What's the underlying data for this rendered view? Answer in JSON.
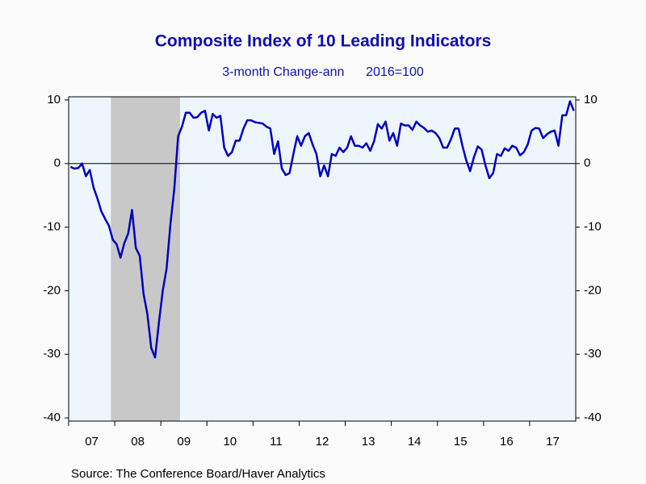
{
  "chart_data": {
    "type": "line",
    "title": "Composite Index of 10 Leading Indicators",
    "subtitle": "3-month Change-ann      2016=100",
    "source": "Source:  The Conference Board/Haver Analytics",
    "categories": [
      null,
      null,
      null,
      null,
      null,
      null,
      "07",
      null,
      null,
      null,
      null,
      null,
      null,
      null,
      null,
      null,
      null,
      null,
      "08",
      null,
      null,
      null,
      null,
      null,
      null,
      null,
      null,
      null,
      null,
      null,
      "09",
      null,
      null,
      null,
      null,
      null,
      null,
      null,
      null,
      null,
      null,
      null,
      "10",
      null,
      null,
      null,
      null,
      null,
      null,
      null,
      null,
      null,
      null,
      null,
      "11",
      null,
      null,
      null,
      null,
      null,
      null,
      null,
      null,
      null,
      null,
      null,
      "12",
      null,
      null,
      null,
      null,
      null,
      null,
      null,
      null,
      null,
      null,
      null,
      "13",
      null,
      null,
      null,
      null,
      null,
      null,
      null,
      null,
      null,
      null,
      null,
      "14",
      null,
      null,
      null,
      null,
      null,
      null,
      null,
      null,
      null,
      null,
      null,
      "15",
      null,
      null,
      null,
      null,
      null,
      null,
      null,
      null,
      null,
      null,
      null,
      "16",
      null,
      null,
      null,
      null,
      null,
      null,
      null,
      null,
      null,
      null,
      null,
      "17",
      null,
      null,
      null,
      null,
      null
    ],
    "series": [
      {
        "color": "#0000c0",
        "values": [
          -0.5,
          -0.8,
          -0.7,
          0,
          -2,
          -1,
          -3.8,
          -5.5,
          -7.5,
          -8.7,
          -9.8,
          -12,
          -12.7,
          -14.8,
          -12.5,
          -11,
          -7.3,
          -13.3,
          -14.5,
          -20.5,
          -23.7,
          -29,
          -30.5,
          -25,
          -20,
          -16.5,
          -9.5,
          -4,
          4.3,
          5.8,
          8,
          8,
          7.2,
          7.3,
          8,
          8.3,
          5.2,
          7.8,
          7.2,
          7.5,
          2.5,
          1.2,
          1.8,
          3.6,
          3.6,
          5.5,
          6.8,
          6.8,
          6.5,
          6.4,
          6.3,
          5.8,
          5.5,
          1.5,
          3.5,
          -0.8,
          -1.8,
          -1.5,
          1.5,
          4.3,
          2.8,
          4.3,
          4.8,
          3,
          1.5,
          -2,
          -0.3,
          -2,
          1.5,
          1.2,
          2.5,
          1.8,
          2.5,
          4.3,
          2.8,
          2.8,
          2.5,
          3.2,
          2,
          3.5,
          6.2,
          5.5,
          6.6,
          3.6,
          4.8,
          2.8,
          6.3,
          6,
          6,
          5.3,
          6.6,
          6,
          5.6,
          5,
          5.2,
          4.8,
          4,
          2.5,
          2.5,
          3.8,
          5.5,
          5.5,
          2.8,
          0.5,
          -1.2,
          1,
          2.7,
          2.2,
          -0.3,
          -2.3,
          -1.5,
          1.5,
          1.2,
          2.4,
          2,
          2.8,
          2.5,
          1.3,
          1.8,
          3,
          5.2,
          5.6,
          5.5,
          4,
          4.6,
          5,
          5.2,
          2.8,
          7.6,
          7.6,
          9.8,
          8.3
        ]
      }
    ],
    "recession": [
      11,
      28
    ],
    "recession_color": "#c8c8c8",
    "ylim": [
      -40.5,
      10.5
    ],
    "yticks": [
      -40,
      -30,
      -20,
      -10,
      0,
      10
    ],
    "zero_line": true,
    "plot_background": "#eef6fd"
  }
}
